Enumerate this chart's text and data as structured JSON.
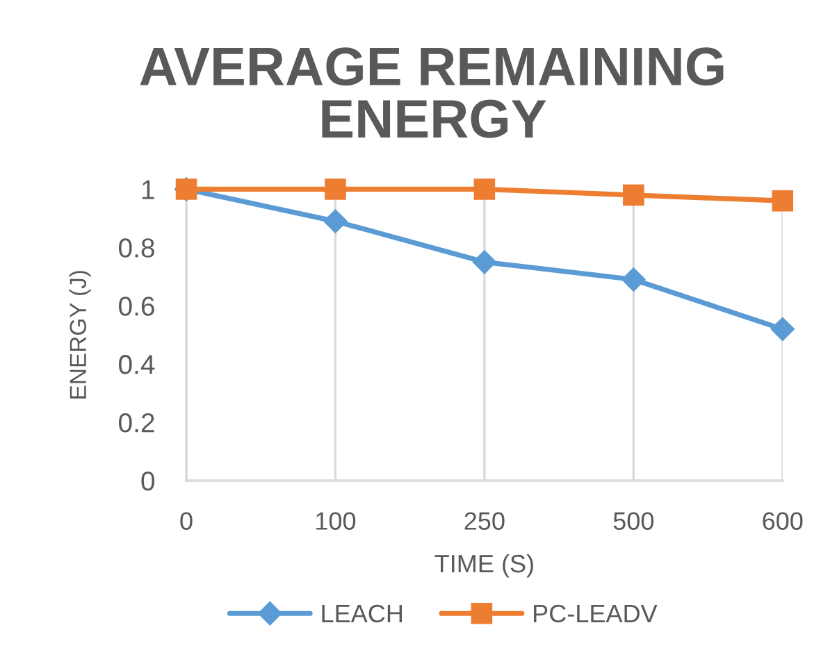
{
  "chart_data": {
    "type": "line",
    "title": "AVERAGE REMAINING ENERGY",
    "xlabel": "TIME (S)",
    "ylabel": "ENERGY (J)",
    "categories": [
      "0",
      "100",
      "250",
      "500",
      "600"
    ],
    "series": [
      {
        "name": "LEACH",
        "color": "#5b9bd5",
        "marker": "diamond",
        "values": [
          1,
          0.89,
          0.75,
          0.69,
          0.52
        ]
      },
      {
        "name": "PC-LEADV",
        "color": "#ed7d31",
        "marker": "square",
        "values": [
          1,
          1,
          1,
          0.98,
          0.96
        ]
      }
    ],
    "ylim": [
      0,
      1
    ],
    "yticks": [
      0,
      0.2,
      0.4,
      0.6,
      0.8,
      1
    ],
    "grid": "x",
    "legend": "bottom",
    "line_style": "solid"
  }
}
